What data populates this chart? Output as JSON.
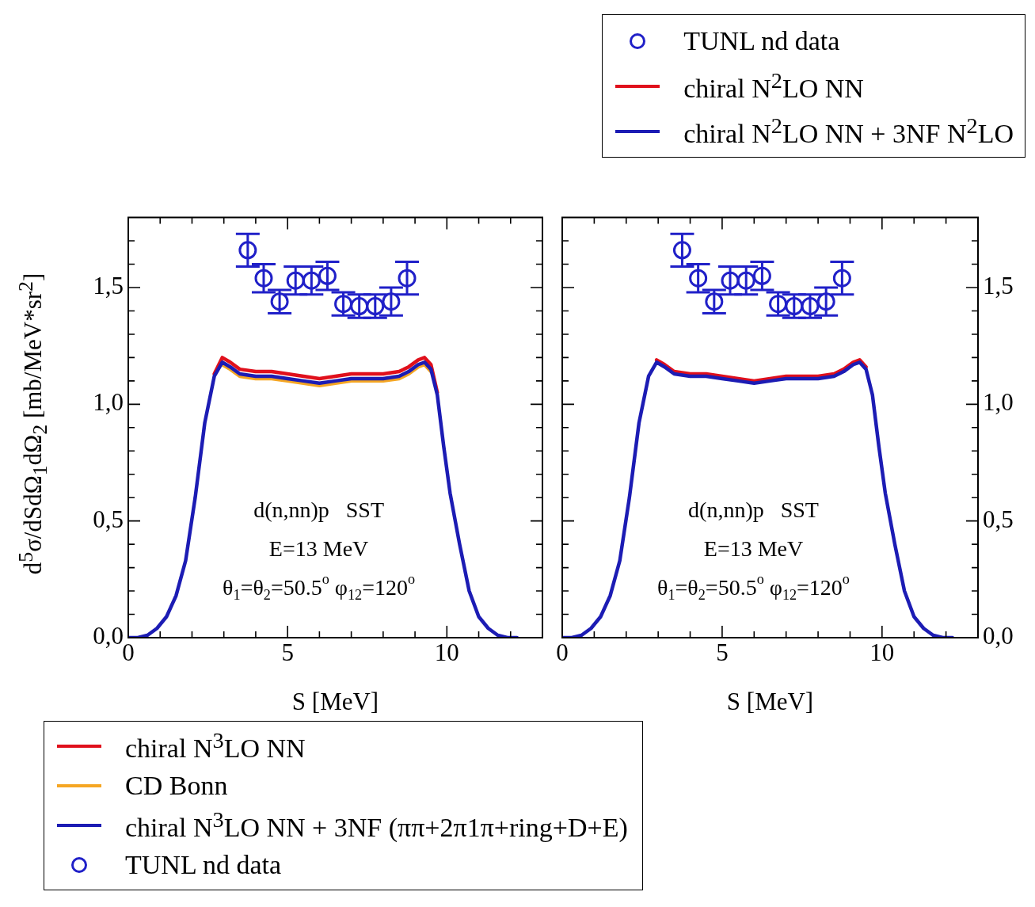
{
  "chart_data": [
    {
      "type": "line",
      "xlabel": "S [MeV]",
      "ylabel": "d$^{5}$σ/dSdΩ$_{1}$dΩ$_{2}$ [mb/MeV*sr$^{2}$]",
      "legend": "bottom",
      "x": [
        0,
        0.3,
        0.6,
        0.9,
        1.2,
        1.5,
        1.8,
        2.1,
        2.4,
        2.7,
        2.95,
        3.2,
        3.5,
        4,
        4.5,
        5,
        5.5,
        6,
        6.5,
        7,
        7.5,
        8,
        8.5,
        8.8,
        9.1,
        9.3,
        9.5,
        9.7,
        9.9,
        10.1,
        10.4,
        10.7,
        11,
        11.3,
        11.6,
        11.9,
        12.2
      ],
      "xlim": [
        0,
        13
      ],
      "xticks": [
        0,
        {
          "value": 1,
          "label": null
        },
        {
          "value": 2,
          "label": null
        },
        {
          "value": 3,
          "label": null
        },
        {
          "value": 4,
          "label": null
        },
        5,
        {
          "value": 6,
          "label": null
        },
        {
          "value": 7,
          "label": null
        },
        {
          "value": 8,
          "label": null
        },
        {
          "value": 9,
          "label": null
        },
        10,
        {
          "value": 11,
          "label": null
        },
        {
          "value": 12,
          "label": null
        }
      ],
      "ylim": [
        0,
        1.8
      ],
      "yticks": [
        {
          "value": 0,
          "label": "0,0"
        },
        {
          "value": 0.1,
          "label": null
        },
        {
          "value": 0.2,
          "label": null
        },
        {
          "value": 0.3,
          "label": null
        },
        {
          "value": 0.4,
          "label": null
        },
        {
          "value": 0.5,
          "label": "0,5"
        },
        {
          "value": 0.6,
          "label": null
        },
        {
          "value": 0.7,
          "label": null
        },
        {
          "value": 0.8,
          "label": null
        },
        {
          "value": 0.9,
          "label": null
        },
        {
          "value": 1,
          "label": "1,0"
        },
        {
          "value": 1.1,
          "label": null
        },
        {
          "value": 1.2,
          "label": null
        },
        {
          "value": 1.3,
          "label": null
        },
        {
          "value": 1.4,
          "label": null
        },
        {
          "value": 1.5,
          "label": "1,5"
        },
        {
          "value": 1.6,
          "label": null
        },
        {
          "value": 1.7,
          "label": null
        }
      ],
      "annotations": [
        "d(n,nn)p   SST",
        "E=13 MeV",
        "θ$_{1}$=θ$_{2}$=50.5$^{o}$ φ$_{12}$=120$^{o}$"
      ],
      "series": [
        {
          "name": "chiral N$^{3}$LO NN",
          "color": "#e0101c",
          "values": [
            null,
            null,
            null,
            null,
            null,
            null,
            null,
            null,
            null,
            1.13,
            1.2,
            1.18,
            1.15,
            1.14,
            1.14,
            1.13,
            1.12,
            1.11,
            1.12,
            1.13,
            1.13,
            1.13,
            1.14,
            1.16,
            1.19,
            1.2,
            1.17,
            1.05,
            null,
            null,
            null,
            null,
            null,
            null,
            null,
            null,
            null
          ]
        },
        {
          "name": "CD Bonn",
          "color": "#f5a623",
          "values": [
            null,
            null,
            null,
            null,
            null,
            null,
            null,
            null,
            null,
            null,
            1.17,
            1.15,
            1.12,
            1.11,
            1.11,
            1.1,
            1.09,
            1.08,
            1.09,
            1.1,
            1.1,
            1.1,
            1.11,
            1.13,
            1.16,
            1.17,
            1.14,
            null,
            null,
            null,
            null,
            null,
            null,
            null,
            null,
            null,
            null
          ]
        },
        {
          "name": "chiral N$^{3}$LO NN + 3NF (ππ+2π1π+ring+D+E)",
          "color": "#1c1cb4",
          "values": [
            0,
            0,
            0.01,
            0.04,
            0.09,
            0.18,
            0.33,
            0.6,
            0.92,
            1.12,
            1.18,
            1.16,
            1.13,
            1.12,
            1.12,
            1.11,
            1.1,
            1.09,
            1.1,
            1.11,
            1.11,
            1.11,
            1.12,
            1.14,
            1.17,
            1.18,
            1.15,
            1.04,
            0.82,
            0.62,
            0.4,
            0.2,
            0.09,
            0.04,
            0.01,
            0,
            0
          ]
        },
        {
          "name": "TUNL nd data",
          "type": "scatter",
          "marker": "circle",
          "color": "#2020c8",
          "x": [
            3.75,
            4.25,
            4.75,
            5.25,
            5.75,
            6.25,
            6.75,
            7.25,
            7.75,
            8.25,
            8.75
          ],
          "values": [
            1.66,
            1.54,
            1.44,
            1.53,
            1.53,
            1.55,
            1.43,
            1.42,
            1.42,
            1.44,
            1.54
          ],
          "errors": [
            0.07,
            0.06,
            0.05,
            0.06,
            0.06,
            0.06,
            0.05,
            0.05,
            0.05,
            0.06,
            0.07
          ]
        }
      ]
    },
    {
      "type": "line",
      "xlabel": "S [MeV]",
      "legend": "top",
      "x": [
        0,
        0.3,
        0.6,
        0.9,
        1.2,
        1.5,
        1.8,
        2.1,
        2.4,
        2.7,
        2.95,
        3.2,
        3.5,
        4,
        4.5,
        5,
        5.5,
        6,
        6.5,
        7,
        7.5,
        8,
        8.5,
        8.8,
        9.1,
        9.3,
        9.5,
        9.7,
        9.9,
        10.1,
        10.4,
        10.7,
        11,
        11.3,
        11.6,
        11.9,
        12.2
      ],
      "xlim": [
        0,
        13
      ],
      "xticks": [
        0,
        {
          "value": 1,
          "label": null
        },
        {
          "value": 2,
          "label": null
        },
        {
          "value": 3,
          "label": null
        },
        {
          "value": 4,
          "label": null
        },
        5,
        {
          "value": 6,
          "label": null
        },
        {
          "value": 7,
          "label": null
        },
        {
          "value": 8,
          "label": null
        },
        {
          "value": 9,
          "label": null
        },
        10,
        {
          "value": 11,
          "label": null
        },
        {
          "value": 12,
          "label": null
        }
      ],
      "ylim": [
        0,
        1.8
      ],
      "yticks": [
        {
          "value": 0,
          "label": "0,0"
        },
        {
          "value": 0.1,
          "label": null
        },
        {
          "value": 0.2,
          "label": null
        },
        {
          "value": 0.3,
          "label": null
        },
        {
          "value": 0.4,
          "label": null
        },
        {
          "value": 0.5,
          "label": "0,5"
        },
        {
          "value": 0.6,
          "label": null
        },
        {
          "value": 0.7,
          "label": null
        },
        {
          "value": 0.8,
          "label": null
        },
        {
          "value": 0.9,
          "label": null
        },
        {
          "value": 1,
          "label": "1,0"
        },
        {
          "value": 1.1,
          "label": null
        },
        {
          "value": 1.2,
          "label": null
        },
        {
          "value": 1.3,
          "label": null
        },
        {
          "value": 1.4,
          "label": null
        },
        {
          "value": 1.5,
          "label": "1,5"
        },
        {
          "value": 1.6,
          "label": null
        },
        {
          "value": 1.7,
          "label": null
        }
      ],
      "annotations": [
        "d(n,nn)p   SST",
        "E=13 MeV",
        "θ$_{1}$=θ$_{2}$=50.5$^{o}$ φ$_{12}$=120$^{o}$"
      ],
      "series": [
        {
          "name": "TUNL nd data",
          "type": "scatter",
          "marker": "circle",
          "color": "#2020c8",
          "x": [
            3.75,
            4.25,
            4.75,
            5.25,
            5.75,
            6.25,
            6.75,
            7.25,
            7.75,
            8.25,
            8.75
          ],
          "values": [
            1.66,
            1.54,
            1.44,
            1.53,
            1.53,
            1.55,
            1.43,
            1.42,
            1.42,
            1.44,
            1.54
          ],
          "errors": [
            0.07,
            0.06,
            0.05,
            0.06,
            0.06,
            0.06,
            0.05,
            0.05,
            0.05,
            0.06,
            0.07
          ]
        },
        {
          "name": "chiral N$^{2}$LO NN",
          "color": "#e0101c",
          "values": [
            null,
            null,
            null,
            null,
            null,
            null,
            null,
            null,
            null,
            null,
            1.19,
            1.17,
            1.14,
            1.13,
            1.13,
            1.12,
            1.11,
            1.1,
            1.11,
            1.12,
            1.12,
            1.12,
            1.13,
            1.15,
            1.18,
            1.19,
            1.16,
            null,
            null,
            null,
            null,
            null,
            null,
            null,
            null,
            null,
            null
          ]
        },
        {
          "name": "chiral N$^{2}$LO NN + 3NF N$^{2}$LO",
          "color": "#1c1cb4",
          "values": [
            0,
            0,
            0.01,
            0.04,
            0.09,
            0.18,
            0.33,
            0.6,
            0.92,
            1.12,
            1.18,
            1.16,
            1.13,
            1.12,
            1.12,
            1.11,
            1.1,
            1.09,
            1.1,
            1.11,
            1.11,
            1.11,
            1.12,
            1.14,
            1.17,
            1.18,
            1.15,
            1.04,
            0.82,
            0.62,
            0.4,
            0.2,
            0.09,
            0.04,
            0.01,
            0,
            0
          ]
        }
      ]
    }
  ]
}
